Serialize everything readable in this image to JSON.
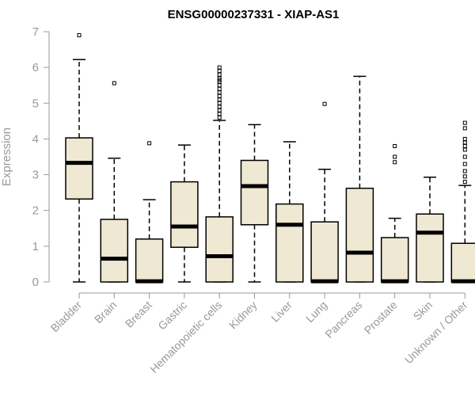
{
  "chart_data": {
    "type": "box",
    "title": "ENSG00000237331 - XIAP-AS1",
    "ylabel": "Expression",
    "xlabel": "",
    "ylim": [
      0,
      7
    ],
    "yticks": [
      0,
      1,
      2,
      3,
      4,
      5,
      6,
      7
    ],
    "categories": [
      "Bladder",
      "Brain",
      "Breast",
      "Gastric",
      "Hematopoietic cells",
      "Kidney",
      "Liver",
      "Lung",
      "Pancreas",
      "Prostate",
      "Skin",
      "Unknown / Other"
    ],
    "series": [
      {
        "category": "Bladder",
        "min": 0,
        "q1": 2.32,
        "median": 3.33,
        "q3": 4.03,
        "max": 6.22,
        "outliers": [
          6.9
        ]
      },
      {
        "category": "Brain",
        "min": 0,
        "q1": 0,
        "median": 0.65,
        "q3": 1.75,
        "max": 3.46,
        "outliers": [
          5.56
        ]
      },
      {
        "category": "Breast",
        "min": 0,
        "q1": 0,
        "median": 0.02,
        "q3": 1.2,
        "max": 2.3,
        "outliers": [
          3.88
        ]
      },
      {
        "category": "Gastric",
        "min": 0,
        "q1": 0.97,
        "median": 1.55,
        "q3": 2.8,
        "max": 3.83,
        "outliers": []
      },
      {
        "category": "Hematopoietic cells",
        "min": 0,
        "q1": 0,
        "median": 0.72,
        "q3": 1.82,
        "max": 4.52,
        "outliers": [
          4.6,
          4.7,
          4.8,
          4.9,
          5.0,
          5.1,
          5.2,
          5.3,
          5.4,
          5.5,
          5.6,
          5.65,
          5.7,
          5.8,
          5.9,
          6.0
        ]
      },
      {
        "category": "Kidney",
        "min": 0,
        "q1": 1.6,
        "median": 2.68,
        "q3": 3.4,
        "max": 4.4,
        "outliers": []
      },
      {
        "category": "Liver",
        "min": 0,
        "q1": 0,
        "median": 1.6,
        "q3": 2.18,
        "max": 3.92,
        "outliers": []
      },
      {
        "category": "Lung",
        "min": 0,
        "q1": 0,
        "median": 0.02,
        "q3": 1.68,
        "max": 3.15,
        "outliers": [
          4.98
        ]
      },
      {
        "category": "Pancreas",
        "min": 0,
        "q1": 0,
        "median": 0.82,
        "q3": 2.62,
        "max": 5.75,
        "outliers": []
      },
      {
        "category": "Prostate",
        "min": 0,
        "q1": 0,
        "median": 0.02,
        "q3": 1.24,
        "max": 1.78,
        "outliers": [
          3.35,
          3.5,
          3.8
        ]
      },
      {
        "category": "Skin",
        "min": 0,
        "q1": 0,
        "median": 1.38,
        "q3": 1.9,
        "max": 2.93,
        "outliers": []
      },
      {
        "category": "Unknown / Other",
        "min": 0,
        "q1": 0,
        "median": 0.02,
        "q3": 1.08,
        "max": 2.7,
        "outliers": [
          2.8,
          2.95,
          3.1,
          3.3,
          3.5,
          3.7,
          3.8,
          3.9,
          4.0,
          4.3,
          4.45
        ]
      }
    ],
    "box_fill": "#efe8d2",
    "grid": false,
    "legend": "none"
  }
}
